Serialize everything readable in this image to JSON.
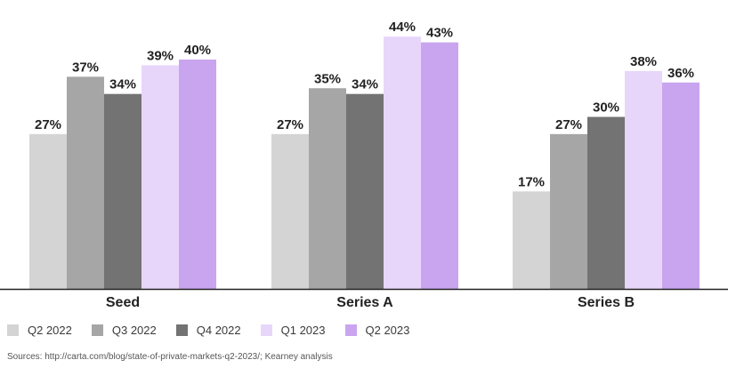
{
  "chart_data": {
    "type": "bar",
    "categories": [
      "Seed",
      "Series A",
      "Series B"
    ],
    "series": [
      {
        "name": "Q2 2022",
        "values": [
          27,
          27,
          17
        ],
        "color": "#d4d4d4"
      },
      {
        "name": "Q3 2022",
        "values": [
          37,
          35,
          27
        ],
        "color": "#a6a6a6"
      },
      {
        "name": "Q4 2022",
        "values": [
          34,
          34,
          30
        ],
        "color": "#737373"
      },
      {
        "name": "Q1 2023",
        "values": [
          39,
          44,
          38
        ],
        "color": "#e8d6fa"
      },
      {
        "name": "Q2 2023",
        "values": [
          40,
          43,
          36
        ],
        "color": "#c9a5f0"
      }
    ],
    "value_suffix": "%",
    "ylim": [
      0,
      50
    ],
    "grid": false,
    "legend_position": "bottom-left",
    "title": "",
    "xlabel": "",
    "ylabel": ""
  },
  "source": "Sources: http://carta.com/blog/state-of-private-markets-q2-2023/; Kearney analysis"
}
